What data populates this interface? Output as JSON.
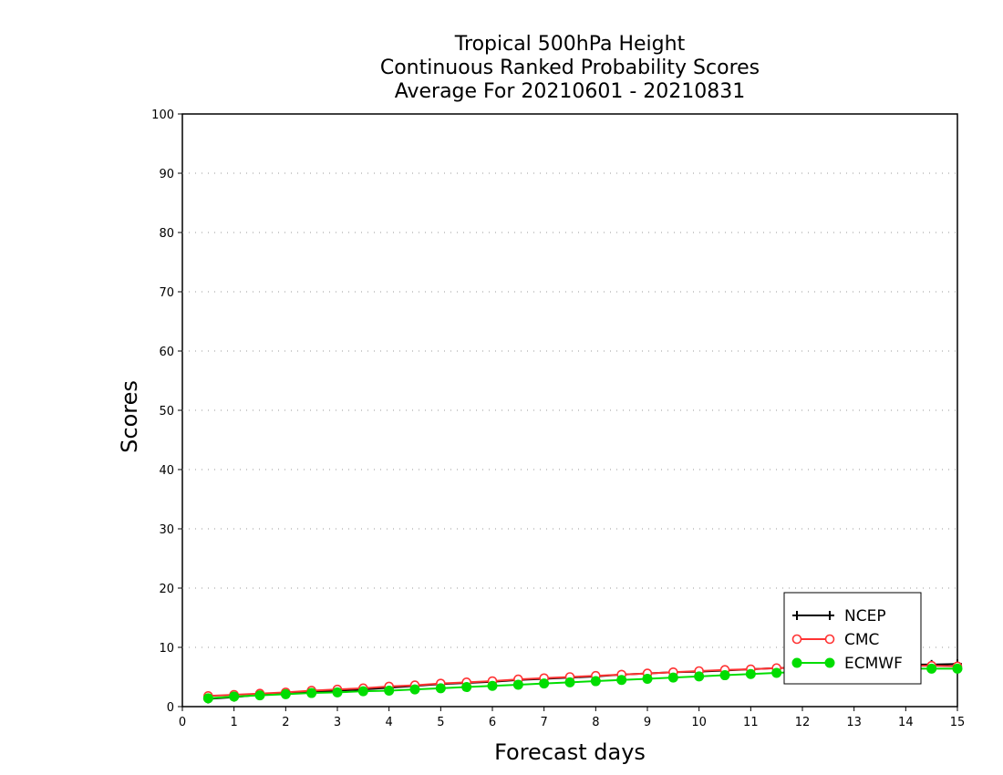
{
  "chart_data": {
    "type": "line",
    "title": [
      "Tropical 500hPa Height",
      "Continuous Ranked Probability Scores",
      "Average For 20210601 - 20210831"
    ],
    "xlabel": "Forecast days",
    "ylabel": "Scores",
    "xlim": [
      0,
      15
    ],
    "ylim": [
      0,
      100
    ],
    "xticks": [
      0,
      1,
      2,
      3,
      4,
      5,
      6,
      7,
      8,
      9,
      10,
      11,
      12,
      13,
      14,
      15
    ],
    "yticks": [
      0,
      10,
      20,
      30,
      40,
      50,
      60,
      70,
      80,
      90,
      100
    ],
    "grid": "dotted horizontal",
    "legend_position": "bottom-right",
    "x": [
      0.5,
      1,
      1.5,
      2,
      2.5,
      3,
      3.5,
      4,
      4.5,
      5,
      5.5,
      6,
      6.5,
      7,
      7.5,
      8,
      8.5,
      9,
      9.5,
      10,
      10.5,
      11,
      11.5,
      12,
      12.5,
      13,
      13.5,
      14,
      14.5,
      15
    ],
    "series": [
      {
        "name": "NCEP",
        "color": "#000000",
        "marker": "plus",
        "values": [
          1.3,
          1.6,
          2.0,
          2.2,
          2.5,
          2.7,
          2.9,
          3.2,
          3.5,
          3.8,
          4.0,
          4.2,
          4.5,
          4.7,
          4.9,
          5.1,
          5.4,
          5.6,
          5.8,
          5.9,
          6.1,
          6.3,
          6.5,
          6.6,
          6.7,
          6.9,
          7.0,
          7.1,
          7.1,
          7.2
        ]
      },
      {
        "name": "CMC",
        "color": "#ff3333",
        "marker": "open-circle",
        "values": [
          1.8,
          2.0,
          2.2,
          2.4,
          2.7,
          2.9,
          3.1,
          3.4,
          3.6,
          3.9,
          4.1,
          4.3,
          4.6,
          4.8,
          5.0,
          5.2,
          5.4,
          5.6,
          5.8,
          6.0,
          6.2,
          6.3,
          6.5,
          6.6,
          6.7,
          6.8,
          6.8,
          6.9,
          6.9,
          6.8
        ]
      },
      {
        "name": "ECMWF",
        "color": "#00dd00",
        "marker": "filled-circle",
        "values": [
          1.4,
          1.7,
          1.9,
          2.1,
          2.3,
          2.4,
          2.6,
          2.7,
          2.9,
          3.1,
          3.3,
          3.5,
          3.7,
          3.9,
          4.1,
          4.3,
          4.5,
          4.7,
          4.9,
          5.1,
          5.3,
          5.5,
          5.7,
          5.9,
          6.0,
          6.2,
          6.3,
          6.4,
          6.4,
          6.4
        ]
      }
    ]
  }
}
